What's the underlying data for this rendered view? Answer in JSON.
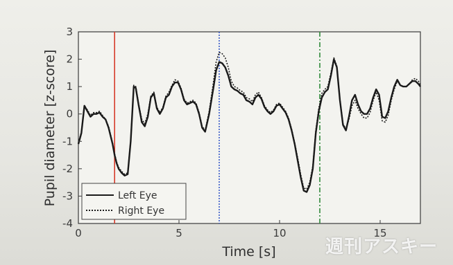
{
  "chart_data": {
    "type": "line",
    "title": "",
    "xlabel": "Time [s]",
    "ylabel": "Pupil diameter [z-score]",
    "xlim": [
      0,
      17
    ],
    "ylim": [
      -4,
      3
    ],
    "xticks": [
      0,
      5,
      10,
      15
    ],
    "yticks": [
      -4,
      -3,
      -2,
      -1,
      0,
      1,
      2,
      3
    ],
    "grid": false,
    "legend_position": "bottom-left",
    "series": [
      {
        "name": "Left Eye",
        "style": "solid",
        "color": "#1a1a1a",
        "x": [
          0,
          0.15,
          0.3,
          0.45,
          0.6,
          0.75,
          0.9,
          1.05,
          1.2,
          1.35,
          1.5,
          1.6,
          1.7,
          1.8,
          1.9,
          2.0,
          2.15,
          2.3,
          2.45,
          2.6,
          2.75,
          2.85,
          3.0,
          3.15,
          3.3,
          3.45,
          3.6,
          3.75,
          3.9,
          4.05,
          4.2,
          4.35,
          4.5,
          4.65,
          4.8,
          4.95,
          5.1,
          5.25,
          5.4,
          5.55,
          5.7,
          5.85,
          6.0,
          6.15,
          6.3,
          6.5,
          6.7,
          6.85,
          7.0,
          7.15,
          7.3,
          7.45,
          7.6,
          7.75,
          7.9,
          8.05,
          8.2,
          8.35,
          8.5,
          8.65,
          8.8,
          8.95,
          9.1,
          9.25,
          9.4,
          9.55,
          9.7,
          9.85,
          10.0,
          10.15,
          10.3,
          10.45,
          10.6,
          10.75,
          10.9,
          11.05,
          11.2,
          11.35,
          11.5,
          11.65,
          11.8,
          11.95,
          12.1,
          12.25,
          12.4,
          12.55,
          12.7,
          12.85,
          13.0,
          13.15,
          13.3,
          13.45,
          13.6,
          13.75,
          13.9,
          14.05,
          14.2,
          14.35,
          14.5,
          14.65,
          14.8,
          14.95,
          15.1,
          15.25,
          15.4,
          15.55,
          15.7,
          15.85,
          16.0,
          16.15,
          16.3,
          16.45,
          16.6,
          16.75,
          16.9,
          17.0
        ],
        "y": [
          -1.1,
          -0.7,
          0.3,
          0.1,
          -0.1,
          0.0,
          0.0,
          0.05,
          -0.1,
          -0.2,
          -0.5,
          -0.8,
          -1.1,
          -1.5,
          -1.8,
          -2.0,
          -2.15,
          -2.25,
          -2.2,
          -1.0,
          1.0,
          0.95,
          0.3,
          -0.3,
          -0.45,
          -0.1,
          0.6,
          0.75,
          0.2,
          0.0,
          0.2,
          0.6,
          0.7,
          1.0,
          1.15,
          1.15,
          0.9,
          0.5,
          0.35,
          0.4,
          0.45,
          0.35,
          0.0,
          -0.5,
          -0.65,
          0.0,
          0.9,
          1.6,
          1.9,
          1.85,
          1.7,
          1.4,
          1.0,
          0.9,
          0.85,
          0.75,
          0.7,
          0.5,
          0.45,
          0.35,
          0.6,
          0.7,
          0.55,
          0.25,
          0.1,
          0.0,
          0.1,
          0.3,
          0.35,
          0.2,
          0.05,
          -0.2,
          -0.6,
          -1.1,
          -1.7,
          -2.3,
          -2.8,
          -2.85,
          -2.6,
          -2.0,
          -0.7,
          0.1,
          0.6,
          0.8,
          0.9,
          1.4,
          2.0,
          1.7,
          0.5,
          -0.4,
          -0.6,
          -0.1,
          0.5,
          0.7,
          0.35,
          0.1,
          0.0,
          0.0,
          0.2,
          0.6,
          0.9,
          0.7,
          -0.1,
          -0.15,
          0.1,
          0.6,
          1.0,
          1.25,
          1.05,
          1.0,
          1.0,
          1.1,
          1.2,
          1.2,
          1.1,
          1.0
        ],
        "_note": ""
      },
      {
        "name": "Right Eye",
        "style": "dotted",
        "color": "#1a1a1a",
        "x": [
          0,
          0.15,
          0.3,
          0.45,
          0.6,
          0.75,
          0.9,
          1.05,
          1.2,
          1.35,
          1.5,
          1.6,
          1.7,
          1.8,
          1.9,
          2.0,
          2.15,
          2.3,
          2.45,
          2.6,
          2.75,
          2.85,
          3.0,
          3.15,
          3.3,
          3.45,
          3.6,
          3.75,
          3.9,
          4.05,
          4.2,
          4.35,
          4.5,
          4.65,
          4.8,
          4.95,
          5.1,
          5.25,
          5.4,
          5.55,
          5.7,
          5.85,
          6.0,
          6.15,
          6.3,
          6.5,
          6.7,
          6.85,
          7.0,
          7.15,
          7.3,
          7.45,
          7.6,
          7.75,
          7.9,
          8.05,
          8.2,
          8.35,
          8.5,
          8.65,
          8.8,
          8.95,
          9.1,
          9.25,
          9.4,
          9.55,
          9.7,
          9.85,
          10.0,
          10.15,
          10.3,
          10.45,
          10.6,
          10.75,
          10.9,
          11.05,
          11.2,
          11.35,
          11.5,
          11.65,
          11.8,
          11.95,
          12.1,
          12.25,
          12.4,
          12.55,
          12.7,
          12.85,
          13.0,
          13.15,
          13.3,
          13.45,
          13.6,
          13.75,
          13.9,
          14.05,
          14.2,
          14.35,
          14.5,
          14.65,
          14.8,
          14.95,
          15.1,
          15.25,
          15.4,
          15.55,
          15.7,
          15.85,
          16.0,
          16.15,
          16.3,
          16.45,
          16.6,
          16.75,
          16.9,
          17.0
        ],
        "y": [
          -1.05,
          -0.65,
          0.3,
          0.15,
          -0.05,
          0.05,
          0.05,
          0.1,
          -0.05,
          -0.2,
          -0.45,
          -0.75,
          -1.05,
          -1.45,
          -1.75,
          -1.95,
          -2.1,
          -2.2,
          -2.15,
          -0.95,
          1.05,
          1.0,
          0.35,
          -0.2,
          -0.35,
          0.0,
          0.65,
          0.8,
          0.25,
          0.05,
          0.25,
          0.65,
          0.8,
          1.05,
          1.25,
          1.2,
          0.95,
          0.55,
          0.4,
          0.45,
          0.5,
          0.4,
          0.05,
          -0.45,
          -0.6,
          0.1,
          1.1,
          1.9,
          2.25,
          2.2,
          2.05,
          1.7,
          1.2,
          1.0,
          0.95,
          0.85,
          0.8,
          0.6,
          0.55,
          0.45,
          0.7,
          0.8,
          0.6,
          0.3,
          0.15,
          0.05,
          0.15,
          0.35,
          0.4,
          0.25,
          0.1,
          -0.15,
          -0.55,
          -1.05,
          -1.6,
          -2.2,
          -2.7,
          -2.75,
          -2.5,
          -1.9,
          -0.6,
          0.2,
          0.75,
          0.9,
          1.0,
          1.5,
          2.05,
          1.75,
          0.55,
          -0.35,
          -0.55,
          -0.2,
          0.3,
          0.5,
          0.2,
          0.0,
          -0.15,
          -0.15,
          0.05,
          0.5,
          0.8,
          0.5,
          -0.25,
          -0.3,
          -0.05,
          0.5,
          0.9,
          1.2,
          1.05,
          1.0,
          1.0,
          1.1,
          1.25,
          1.3,
          1.2,
          1.05
        ]
      }
    ],
    "vertical_lines": [
      {
        "x": 1.8,
        "color": "#d63a2a",
        "style": "solid"
      },
      {
        "x": 7.0,
        "color": "#3a5bc8",
        "style": "dotted"
      },
      {
        "x": 12.0,
        "color": "#2f8a3a",
        "style": "dashdot"
      }
    ]
  },
  "watermark": "週刊アスキー"
}
